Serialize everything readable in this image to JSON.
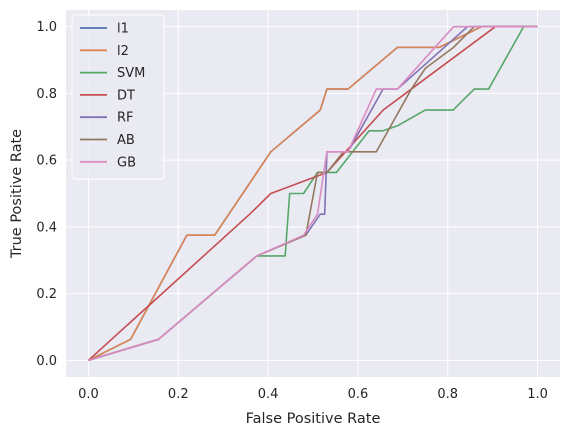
{
  "chart_data": {
    "type": "line",
    "title": "",
    "xlabel": "False Positive Rate",
    "ylabel": "True Positive Rate",
    "xlim": [
      -0.05,
      1.05
    ],
    "ylim": [
      -0.05,
      1.05
    ],
    "xticks": [
      "0.0",
      "0.2",
      "0.4",
      "0.6",
      "0.8",
      "1.0"
    ],
    "yticks": [
      "0.0",
      "0.2",
      "0.4",
      "0.6",
      "0.8",
      "1.0"
    ],
    "grid": true,
    "background": "#eaeaf2",
    "legend_position": "upper-left",
    "series": [
      {
        "name": "l1",
        "color": "#4c72b0",
        "x": [
          0,
          0.094,
          0.219,
          0.281,
          0.406,
          0.516,
          0.531,
          0.578,
          0.688,
          0.781,
          0.875,
          1.0
        ],
        "y": [
          0,
          0.063,
          0.375,
          0.375,
          0.625,
          0.75,
          0.813,
          0.813,
          0.938,
          0.938,
          1.0,
          1.0
        ]
      },
      {
        "name": "l2",
        "color": "#dd8452",
        "x": [
          0,
          0.094,
          0.219,
          0.281,
          0.406,
          0.516,
          0.531,
          0.578,
          0.688,
          0.781,
          0.875,
          1.0
        ],
        "y": [
          0,
          0.063,
          0.375,
          0.375,
          0.625,
          0.75,
          0.813,
          0.813,
          0.938,
          0.938,
          1.0,
          1.0
        ]
      },
      {
        "name": "SVM",
        "color": "#55a868",
        "x": [
          0,
          0.156,
          0.375,
          0.438,
          0.448,
          0.479,
          0.51,
          0.51,
          0.552,
          0.625,
          0.656,
          0.688,
          0.75,
          0.812,
          0.859,
          0.891,
          0.969,
          1.0
        ],
        "y": [
          0,
          0.063,
          0.313,
          0.313,
          0.5,
          0.5,
          0.563,
          0.563,
          0.563,
          0.688,
          0.688,
          0.703,
          0.75,
          0.75,
          0.813,
          0.813,
          1.0,
          1.0
        ]
      },
      {
        "name": "DT",
        "color": "#c44e52",
        "x": [
          0,
          0.359,
          0.406,
          0.531,
          0.656,
          0.719,
          0.906,
          1.0
        ],
        "y": [
          0,
          0.438,
          0.5,
          0.563,
          0.75,
          0.813,
          1.0,
          1.0
        ]
      },
      {
        "name": "RF",
        "color": "#8172b3",
        "x": [
          0,
          0.156,
          0.375,
          0.484,
          0.516,
          0.526,
          0.531,
          0.578,
          0.656,
          0.688,
          0.844,
          1.0
        ],
        "y": [
          0,
          0.063,
          0.313,
          0.375,
          0.438,
          0.438,
          0.625,
          0.625,
          0.813,
          0.813,
          1.0,
          1.0
        ]
      },
      {
        "name": "AB",
        "color": "#937860",
        "x": [
          0,
          0.156,
          0.375,
          0.484,
          0.51,
          0.531,
          0.568,
          0.641,
          0.719,
          0.75,
          0.813,
          0.859,
          1.0
        ],
        "y": [
          0,
          0.063,
          0.313,
          0.375,
          0.563,
          0.563,
          0.625,
          0.625,
          0.813,
          0.875,
          0.938,
          1.0,
          1.0
        ]
      },
      {
        "name": "GB",
        "color": "#da8bc3",
        "x": [
          0,
          0.156,
          0.375,
          0.479,
          0.51,
          0.531,
          0.578,
          0.641,
          0.688,
          0.813,
          0.844,
          1.0
        ],
        "y": [
          0,
          0.063,
          0.313,
          0.375,
          0.438,
          0.625,
          0.625,
          0.813,
          0.813,
          1.0,
          1.0,
          1.0
        ]
      }
    ]
  }
}
